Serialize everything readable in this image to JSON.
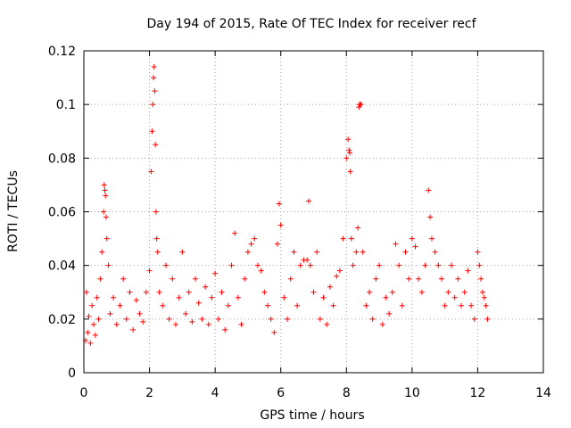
{
  "chart_data": {
    "type": "scatter",
    "title": "Day 194 of 2015, Rate Of TEC Index for receiver recf",
    "xlabel": "GPS time / hours",
    "ylabel": "ROTI / TECUs",
    "xlim": [
      0,
      14
    ],
    "ylim": [
      0,
      0.12
    ],
    "xticks": [
      "0",
      "2",
      "4",
      "6",
      "8",
      "10",
      "12",
      "14"
    ],
    "yticks": [
      "0",
      "0.02",
      "0.04",
      "0.06",
      "0.08",
      "0.1",
      "0.12"
    ],
    "grid": true,
    "marker": "+",
    "color": "#ff0000",
    "series": [
      {
        "name": "ROTI",
        "x": [
          0.05,
          0.08,
          0.12,
          0.15,
          0.2,
          0.25,
          0.3,
          0.35,
          0.4,
          0.45,
          0.5,
          0.55,
          0.6,
          0.62,
          0.64,
          0.66,
          0.68,
          0.7,
          0.75,
          0.8,
          0.9,
          1.0,
          1.1,
          1.2,
          1.3,
          1.4,
          1.5,
          1.6,
          1.7,
          1.8,
          1.9,
          2.0,
          2.05,
          2.08,
          2.1,
          2.12,
          2.14,
          2.16,
          2.18,
          2.2,
          2.22,
          2.25,
          2.3,
          2.4,
          2.5,
          2.6,
          2.7,
          2.8,
          2.9,
          3.0,
          3.1,
          3.2,
          3.3,
          3.4,
          3.5,
          3.6,
          3.7,
          3.8,
          3.9,
          4.0,
          4.1,
          4.2,
          4.3,
          4.4,
          4.5,
          4.6,
          4.7,
          4.8,
          4.9,
          5.0,
          5.1,
          5.2,
          5.3,
          5.4,
          5.5,
          5.6,
          5.7,
          5.8,
          5.9,
          5.95,
          6.0,
          6.1,
          6.2,
          6.3,
          6.4,
          6.5,
          6.6,
          6.7,
          6.8,
          6.85,
          6.9,
          7.0,
          7.1,
          7.2,
          7.3,
          7.4,
          7.5,
          7.6,
          7.7,
          7.8,
          7.9,
          8.0,
          8.05,
          8.08,
          8.1,
          8.12,
          8.15,
          8.2,
          8.3,
          8.35,
          8.38,
          8.4,
          8.42,
          8.45,
          8.5,
          8.6,
          8.7,
          8.8,
          8.9,
          9.0,
          9.1,
          9.2,
          9.3,
          9.4,
          9.5,
          9.6,
          9.7,
          9.8,
          9.9,
          10.0,
          10.1,
          10.2,
          10.3,
          10.4,
          10.5,
          10.55,
          10.6,
          10.7,
          10.8,
          10.9,
          11.0,
          11.1,
          11.2,
          11.3,
          11.4,
          11.5,
          11.6,
          11.7,
          11.8,
          11.9,
          12.0,
          12.05,
          12.1,
          12.15,
          12.2,
          12.25,
          12.3
        ],
        "y": [
          0.012,
          0.03,
          0.015,
          0.021,
          0.011,
          0.025,
          0.018,
          0.014,
          0.028,
          0.02,
          0.035,
          0.045,
          0.06,
          0.07,
          0.068,
          0.066,
          0.058,
          0.05,
          0.04,
          0.022,
          0.028,
          0.018,
          0.025,
          0.035,
          0.02,
          0.03,
          0.016,
          0.027,
          0.022,
          0.019,
          0.03,
          0.038,
          0.075,
          0.09,
          0.1,
          0.11,
          0.114,
          0.105,
          0.085,
          0.06,
          0.05,
          0.045,
          0.03,
          0.025,
          0.04,
          0.02,
          0.035,
          0.018,
          0.028,
          0.045,
          0.022,
          0.03,
          0.019,
          0.035,
          0.026,
          0.02,
          0.032,
          0.018,
          0.028,
          0.037,
          0.02,
          0.03,
          0.016,
          0.025,
          0.04,
          0.052,
          0.028,
          0.018,
          0.035,
          0.045,
          0.048,
          0.05,
          0.04,
          0.038,
          0.03,
          0.025,
          0.02,
          0.015,
          0.048,
          0.063,
          0.055,
          0.028,
          0.02,
          0.035,
          0.045,
          0.025,
          0.04,
          0.042,
          0.042,
          0.064,
          0.04,
          0.03,
          0.045,
          0.02,
          0.028,
          0.018,
          0.032,
          0.025,
          0.036,
          0.038,
          0.05,
          0.08,
          0.087,
          0.083,
          0.082,
          0.075,
          0.05,
          0.04,
          0.045,
          0.054,
          0.099,
          0.1,
          0.1,
          0.1,
          0.045,
          0.025,
          0.03,
          0.02,
          0.035,
          0.04,
          0.018,
          0.028,
          0.022,
          0.03,
          0.048,
          0.04,
          0.025,
          0.045,
          0.035,
          0.05,
          0.047,
          0.035,
          0.03,
          0.04,
          0.068,
          0.058,
          0.05,
          0.045,
          0.04,
          0.035,
          0.025,
          0.03,
          0.04,
          0.028,
          0.035,
          0.025,
          0.03,
          0.038,
          0.025,
          0.02,
          0.045,
          0.04,
          0.035,
          0.03,
          0.028,
          0.025,
          0.02
        ]
      }
    ]
  }
}
